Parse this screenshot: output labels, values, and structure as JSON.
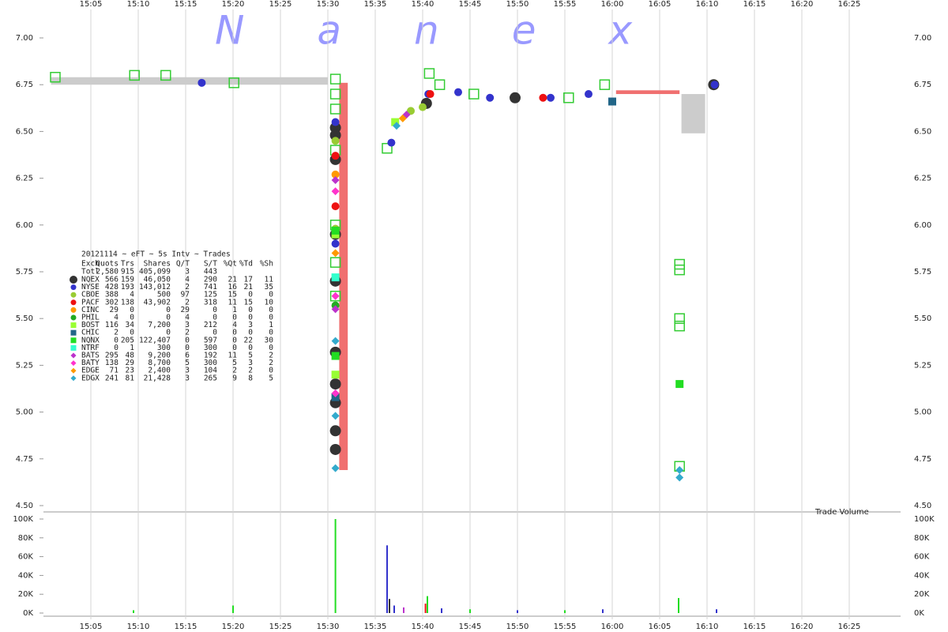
{
  "chart_data": [
    {
      "type": "scatter",
      "watermark": "Nanex",
      "xlim": [
        0,
        90
      ],
      "xticks": [
        {
          "value": 5,
          "label": "15:05"
        },
        {
          "value": 10,
          "label": "15:10"
        },
        {
          "value": 15,
          "label": "15:15"
        },
        {
          "value": 20,
          "label": "15:20"
        },
        {
          "value": 25,
          "label": "15:25"
        },
        {
          "value": 30,
          "label": "15:30"
        },
        {
          "value": 35,
          "label": "15:35"
        },
        {
          "value": 40,
          "label": "15:40"
        },
        {
          "value": 45,
          "label": "15:45"
        },
        {
          "value": 50,
          "label": "15:50"
        },
        {
          "value": 55,
          "label": "15:55"
        },
        {
          "value": 60,
          "label": "16:00"
        },
        {
          "value": 65,
          "label": "16:05"
        },
        {
          "value": 70,
          "label": "16:10"
        },
        {
          "value": 75,
          "label": "16:15"
        },
        {
          "value": 80,
          "label": "16:20"
        },
        {
          "value": 85,
          "label": "16:25"
        }
      ],
      "ylim": [
        4.5,
        7.0
      ],
      "yticks": [
        {
          "value": 4.5,
          "label": "4.50"
        },
        {
          "value": 4.75,
          "label": "4.75"
        },
        {
          "value": 5.0,
          "label": "5.00"
        },
        {
          "value": 5.25,
          "label": "5.25"
        },
        {
          "value": 5.5,
          "label": "5.50"
        },
        {
          "value": 5.75,
          "label": "5.75"
        },
        {
          "value": 6.0,
          "label": "6.00"
        },
        {
          "value": 6.25,
          "label": "6.25"
        },
        {
          "value": 6.5,
          "label": "6.50"
        },
        {
          "value": 6.75,
          "label": "6.75"
        },
        {
          "value": 7.0,
          "label": "7.00"
        }
      ],
      "bands": [
        {
          "color": "#cccccc",
          "x": [
            0.8,
            30
          ],
          "y": [
            6.75,
            6.79
          ]
        },
        {
          "color": "#f07070",
          "x": [
            31.2,
            32.1
          ],
          "y": [
            4.69,
            6.76
          ]
        },
        {
          "color": "#f07070",
          "x": [
            60.4,
            67.1
          ],
          "y": [
            6.7,
            6.72
          ]
        },
        {
          "color": "#cccccc",
          "x": [
            67.3,
            69.8
          ],
          "y": [
            6.49,
            6.7
          ]
        }
      ],
      "quotes": {
        "color": "#33cc33",
        "x": [
          1.25,
          9.6,
          12.9,
          20.1,
          30.8,
          30.8,
          30.8,
          30.8,
          30.8,
          30.8,
          30.8,
          36.25,
          40.7,
          41.8,
          45.4,
          55.4,
          59.2,
          67.1,
          67.1,
          67.1,
          67.1,
          67.1
        ],
        "values": [
          6.79,
          6.8,
          6.8,
          6.76,
          6.78,
          6.7,
          6.62,
          6.4,
          6.0,
          5.8,
          5.62,
          6.41,
          6.81,
          6.75,
          6.7,
          6.68,
          6.75,
          5.79,
          5.76,
          5.5,
          5.46,
          4.71
        ]
      },
      "legend_table": {
        "title": "20121114 ~ eFT ~ 5s Intv ~ Trades",
        "header": [
          "Exch",
          "Quots",
          "Trs",
          "Shares",
          "Q/T",
          "S/T",
          "%Qt",
          "%Td",
          "%Sh"
        ],
        "total": [
          "Totl",
          "2,580",
          "915",
          "405,099",
          "3",
          "443"
        ],
        "rows": [
          [
            "566",
            "159",
            "46,050",
            "4",
            "290",
            "21",
            "17",
            "11"
          ],
          [
            "428",
            "193",
            "143,012",
            "2",
            "741",
            "16",
            "21",
            "35"
          ],
          [
            "388",
            "4",
            "500",
            "97",
            "125",
            "15",
            "0",
            "0"
          ],
          [
            "302",
            "138",
            "43,902",
            "2",
            "318",
            "11",
            "15",
            "10"
          ],
          [
            "29",
            "0",
            "0",
            "29",
            "0",
            "1",
            "0",
            "0"
          ],
          [
            "4",
            "0",
            "0",
            "4",
            "0",
            "0",
            "0",
            "0"
          ],
          [
            "116",
            "34",
            "7,200",
            "3",
            "212",
            "4",
            "3",
            "1"
          ],
          [
            "2",
            "0",
            "0",
            "2",
            "0",
            "0",
            "0",
            "0"
          ],
          [
            "0",
            "205",
            "122,407",
            "0",
            "597",
            "0",
            "22",
            "30"
          ],
          [
            "0",
            "1",
            "300",
            "0",
            "300",
            "0",
            "0",
            "0"
          ],
          [
            "295",
            "48",
            "9,200",
            "6",
            "192",
            "11",
            "5",
            "2"
          ],
          [
            "138",
            "29",
            "8,700",
            "5",
            "300",
            "5",
            "3",
            "2"
          ],
          [
            "71",
            "23",
            "2,400",
            "3",
            "104",
            "2",
            "2",
            "0"
          ],
          [
            "241",
            "81",
            "21,428",
            "3",
            "265",
            "9",
            "8",
            "5"
          ]
        ]
      },
      "series": [
        {
          "name": "NQEX",
          "color": "#333333",
          "marker": "circle",
          "x": [
            30.8,
            30.8,
            30.8,
            30.8,
            30.8,
            30.8,
            30.8,
            30.8,
            30.8,
            30.8,
            40.4,
            49.75,
            70.7
          ],
          "values": [
            6.52,
            6.48,
            6.35,
            5.95,
            5.7,
            5.32,
            5.15,
            5.05,
            4.9,
            4.8,
            6.65,
            6.68,
            6.75
          ]
        },
        {
          "name": "NYSE",
          "color": "#3333cc",
          "marker": "circle",
          "x": [
            16.7,
            30.8,
            30.8,
            36.7,
            40.6,
            43.75,
            47.1,
            53.5,
            57.5,
            70.8
          ],
          "values": [
            6.76,
            6.55,
            5.9,
            6.44,
            6.7,
            6.71,
            6.68,
            6.68,
            6.7,
            6.75
          ]
        },
        {
          "name": "CBOE",
          "color": "#99cc33",
          "marker": "circle",
          "x": [
            30.8,
            30.8,
            38.75,
            40
          ],
          "values": [
            6.45,
            5.98,
            6.61,
            6.63
          ]
        },
        {
          "name": "PACF",
          "color": "#ee1111",
          "marker": "circle",
          "x": [
            30.8,
            30.8,
            40.8,
            52.7
          ],
          "values": [
            6.37,
            6.1,
            6.7,
            6.68
          ]
        },
        {
          "name": "CINC",
          "color": "#ff9900",
          "marker": "circle",
          "x": [
            30.8
          ],
          "values": [
            6.27
          ]
        },
        {
          "name": "PHIL",
          "color": "#22aa22",
          "marker": "circle",
          "x": [
            30.8
          ],
          "values": [
            5.57
          ]
        },
        {
          "name": "BOST",
          "color": "#99ff33",
          "marker": "square",
          "x": [
            30.8,
            30.8,
            37.1
          ],
          "values": [
            5.95,
            5.2,
            6.55
          ]
        },
        {
          "name": "CHIC",
          "color": "#226688",
          "marker": "square",
          "x": [
            30.8,
            60
          ],
          "values": [
            5.08,
            6.66
          ]
        },
        {
          "name": "NQNX",
          "color": "#22dd22",
          "marker": "square",
          "x": [
            30.8,
            30.8,
            67.1
          ],
          "values": [
            5.97,
            5.3,
            5.15
          ]
        },
        {
          "name": "NTRF",
          "color": "#33ffcc",
          "marker": "square",
          "x": [
            30.8
          ],
          "values": [
            5.72
          ]
        },
        {
          "name": "BATS",
          "color": "#bb33cc",
          "marker": "diamond",
          "x": [
            30.8,
            30.8,
            38.3
          ],
          "values": [
            6.24,
            5.55,
            6.59
          ]
        },
        {
          "name": "BATY",
          "color": "#ff33cc",
          "marker": "diamond",
          "x": [
            30.8,
            30.8,
            30.8
          ],
          "values": [
            6.18,
            5.62,
            5.1
          ]
        },
        {
          "name": "EDGE",
          "color": "#ff9900",
          "marker": "diamond",
          "x": [
            30.8,
            37.9
          ],
          "values": [
            5.85,
            6.57
          ]
        },
        {
          "name": "EDGX",
          "color": "#33aacc",
          "marker": "diamond",
          "x": [
            30.8,
            30.8,
            30.8,
            37.25,
            67.1,
            67.1
          ],
          "values": [
            5.38,
            4.98,
            4.7,
            6.53,
            4.69,
            4.65
          ]
        }
      ]
    },
    {
      "type": "bar",
      "title": "Trade Volume",
      "ylim": [
        0,
        100000
      ],
      "yticks": [
        {
          "value": 0,
          "label": "0K"
        },
        {
          "value": 20000,
          "label": "20K"
        },
        {
          "value": 40000,
          "label": "40K"
        },
        {
          "value": 60000,
          "label": "60K"
        },
        {
          "value": 80000,
          "label": "80K"
        },
        {
          "value": 100000,
          "label": "100K"
        }
      ],
      "x": [
        9.5,
        20,
        30.8,
        36.25,
        36.5,
        37,
        38,
        40.3,
        40.5,
        42,
        45,
        50,
        55,
        59,
        67,
        71
      ],
      "values": [
        3000,
        8000,
        100000,
        72000,
        15000,
        8000,
        6000,
        10000,
        18000,
        5000,
        4000,
        3000,
        3000,
        4000,
        16000,
        4000
      ],
      "colors": [
        "#22dd22",
        "#22dd22",
        "#22dd22",
        "#3333cc",
        "#333333",
        "#3333cc",
        "#bb33cc",
        "#ee1111",
        "#22dd22",
        "#3333cc",
        "#22dd22",
        "#3333cc",
        "#22dd22",
        "#3333cc",
        "#22dd22",
        "#3333cc"
      ]
    }
  ]
}
